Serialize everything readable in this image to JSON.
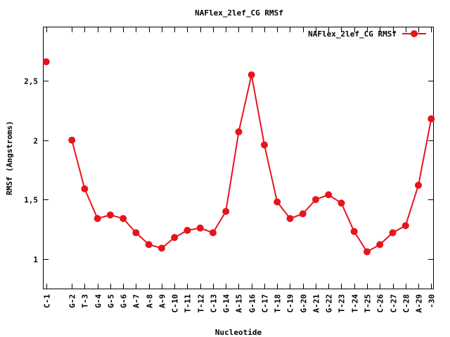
{
  "chart_data": {
    "type": "line",
    "title": "NAFlex_2lef_CG RMSf",
    "xlabel": "Nucleotide",
    "ylabel": "RMSf (Angstroms)",
    "ylim": [
      0.75,
      2.95
    ],
    "yticks": [
      1,
      1.5,
      2,
      2.5
    ],
    "ytick_labels": [
      "1",
      "1,5",
      "2",
      "2,5"
    ],
    "legend_position": "top-right",
    "grid": false,
    "colors": {
      "series": "#e8141c"
    },
    "series": [
      {
        "name": "NAFlex_2lef_CG RMSf",
        "points": [
          {
            "label": "C-1",
            "x": 1,
            "y": 2.66
          },
          {
            "label": "G-2",
            "x": 3,
            "y": 2.0
          },
          {
            "label": "T-3",
            "x": 4,
            "y": 1.59
          },
          {
            "label": "G-4",
            "x": 5,
            "y": 1.34
          },
          {
            "label": "G-5",
            "x": 6,
            "y": 1.37
          },
          {
            "label": "G-6",
            "x": 7,
            "y": 1.34
          },
          {
            "label": "A-7",
            "x": 8,
            "y": 1.22
          },
          {
            "label": "A-8",
            "x": 9,
            "y": 1.12
          },
          {
            "label": "A-9",
            "x": 10,
            "y": 1.09
          },
          {
            "label": "C-10",
            "x": 11,
            "y": 1.18
          },
          {
            "label": "T-11",
            "x": 12,
            "y": 1.24
          },
          {
            "label": "T-12",
            "x": 13,
            "y": 1.26
          },
          {
            "label": "C-13",
            "x": 14,
            "y": 1.22
          },
          {
            "label": "G-14",
            "x": 15,
            "y": 1.4
          },
          {
            "label": "A-15",
            "x": 16,
            "y": 2.07
          },
          {
            "label": "G-16",
            "x": 17,
            "y": 2.55
          },
          {
            "label": "C-17",
            "x": 18,
            "y": 1.96
          },
          {
            "label": "T-18",
            "x": 19,
            "y": 1.48
          },
          {
            "label": "C-19",
            "x": 20,
            "y": 1.34
          },
          {
            "label": "G-20",
            "x": 21,
            "y": 1.38
          },
          {
            "label": "A-21",
            "x": 22,
            "y": 1.5
          },
          {
            "label": "G-22",
            "x": 23,
            "y": 1.54
          },
          {
            "label": "T-23",
            "x": 24,
            "y": 1.47
          },
          {
            "label": "T-24",
            "x": 25,
            "y": 1.23
          },
          {
            "label": "T-25",
            "x": 26,
            "y": 1.06
          },
          {
            "label": "C-26",
            "x": 27,
            "y": 1.12
          },
          {
            "label": "C-27",
            "x": 28,
            "y": 1.22
          },
          {
            "label": "C-28",
            "x": 29,
            "y": 1.28
          },
          {
            "label": "A-29",
            "x": 30,
            "y": 1.62
          },
          {
            "label": "-30",
            "x": 31,
            "y": 2.18
          }
        ]
      }
    ]
  }
}
